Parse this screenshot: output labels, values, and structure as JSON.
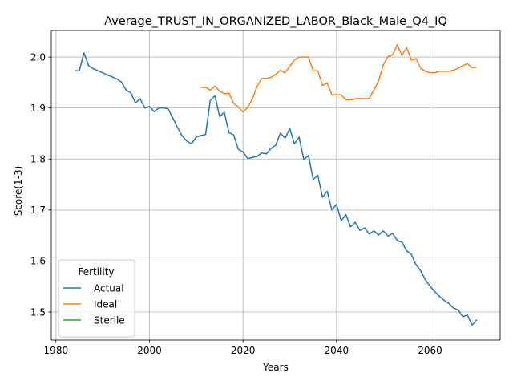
{
  "chart_data": {
    "type": "line",
    "title": "Average_TRUST_IN_ORGANIZED_LABOR_Black_Male_Q4_IQ",
    "xlabel": "Years",
    "ylabel": "Score(1-3)",
    "xlim": [
      1979,
      2075
    ],
    "ylim": [
      1.445,
      2.052
    ],
    "xticks": [
      1980,
      2000,
      2020,
      2040,
      2060
    ],
    "yticks": [
      1.5,
      1.6,
      1.7,
      1.8,
      1.9,
      2.0
    ],
    "ytick_labels": [
      "1.5",
      "1.6",
      "1.7",
      "1.8",
      "1.9",
      "2.0"
    ],
    "grid": true,
    "legend": {
      "title": "Fertility",
      "placement": "lower-left",
      "entries": [
        "Actual",
        "Ideal",
        "Sterile"
      ]
    },
    "series": [
      {
        "name": "Actual",
        "color": "#1f77b4",
        "x": [
          1984,
          1985,
          1986,
          1987,
          1988,
          1989,
          1990,
          1991,
          1992,
          1993,
          1994,
          1995,
          1996,
          1997,
          1998,
          1999,
          2000,
          2001,
          2002,
          2003,
          2004,
          2005,
          2006,
          2007,
          2008,
          2009,
          2010,
          2011,
          2012,
          2013,
          2014,
          2015,
          2016,
          2017,
          2018,
          2019,
          2020,
          2021,
          2022,
          2023,
          2024,
          2025,
          2026,
          2027,
          2028,
          2029,
          2030,
          2031,
          2032,
          2033,
          2034,
          2035,
          2036,
          2037,
          2038,
          2039,
          2040,
          2041,
          2042,
          2043,
          2044,
          2045,
          2046,
          2047,
          2048,
          2049,
          2050,
          2051,
          2052,
          2053,
          2054,
          2055,
          2056,
          2057,
          2058,
          2059,
          2060,
          2061,
          2062,
          2063,
          2064,
          2065,
          2066,
          2067,
          2068,
          2069,
          2070
        ],
        "y": [
          1.973,
          1.973,
          2.008,
          1.983,
          1.977,
          1.973,
          1.969,
          1.965,
          1.961,
          1.957,
          1.951,
          1.935,
          1.93,
          1.91,
          1.918,
          1.9,
          1.903,
          1.893,
          1.9,
          1.9,
          1.898,
          1.88,
          1.862,
          1.845,
          1.835,
          1.83,
          1.843,
          1.846,
          1.848,
          1.915,
          1.924,
          1.883,
          1.892,
          1.852,
          1.847,
          1.819,
          1.814,
          1.801,
          1.803,
          1.805,
          1.812,
          1.81,
          1.821,
          1.827,
          1.851,
          1.841,
          1.86,
          1.83,
          1.843,
          1.799,
          1.807,
          1.76,
          1.768,
          1.725,
          1.737,
          1.7,
          1.711,
          1.679,
          1.691,
          1.667,
          1.676,
          1.66,
          1.665,
          1.653,
          1.659,
          1.651,
          1.659,
          1.649,
          1.654,
          1.64,
          1.637,
          1.62,
          1.613,
          1.593,
          1.581,
          1.563,
          1.551,
          1.54,
          1.531,
          1.523,
          1.517,
          1.508,
          1.504,
          1.491,
          1.494,
          1.474,
          1.485
        ]
      },
      {
        "name": "Ideal",
        "color": "#ff7f0e",
        "x": [
          2011,
          2012,
          2013,
          2014,
          2015,
          2016,
          2017,
          2018,
          2019,
          2020,
          2021,
          2022,
          2023,
          2024,
          2025,
          2026,
          2027,
          2028,
          2029,
          2030,
          2031,
          2032,
          2033,
          2034,
          2035,
          2036,
          2037,
          2038,
          2039,
          2040,
          2041,
          2042,
          2043,
          2044,
          2045,
          2046,
          2047,
          2048,
          2049,
          2050,
          2051,
          2052,
          2053,
          2054,
          2055,
          2056,
          2057,
          2058,
          2059,
          2060,
          2061,
          2062,
          2063,
          2064,
          2065,
          2066,
          2067,
          2068,
          2069,
          2070
        ],
        "y": [
          1.94,
          1.941,
          1.935,
          1.943,
          1.933,
          1.928,
          1.929,
          1.909,
          1.902,
          1.892,
          1.901,
          1.918,
          1.942,
          1.958,
          1.958,
          1.96,
          1.966,
          1.974,
          1.969,
          1.982,
          1.994,
          2.0,
          2.0,
          2.0,
          1.973,
          1.973,
          1.944,
          1.949,
          1.926,
          1.926,
          1.926,
          1.916,
          1.916,
          1.918,
          1.919,
          1.918,
          1.919,
          1.935,
          1.953,
          1.985,
          2.001,
          2.004,
          2.024,
          2.003,
          2.019,
          1.994,
          1.997,
          1.978,
          1.972,
          1.969,
          1.969,
          1.972,
          1.972,
          1.972,
          1.974,
          1.978,
          1.983,
          1.987,
          1.979,
          1.98
        ]
      },
      {
        "name": "Sterile",
        "color": "#2ca02c",
        "x": [],
        "y": []
      }
    ]
  }
}
